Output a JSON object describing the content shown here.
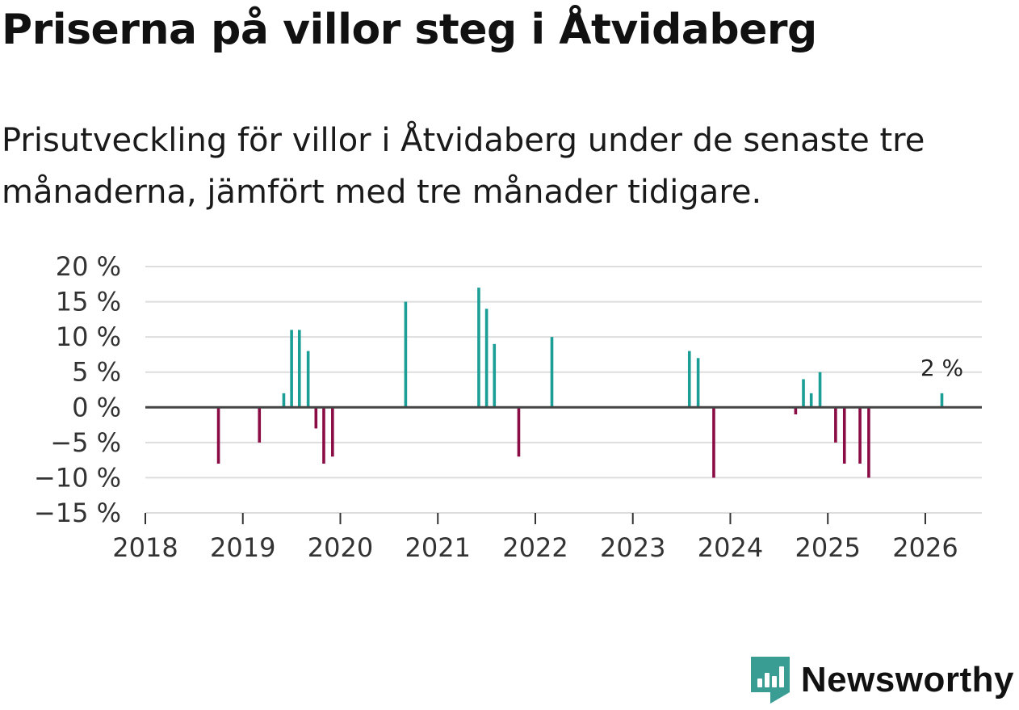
{
  "title": "Priserna på villor steg i Åtvidaberg",
  "subtitle": "Prisutveckling för villor i Åtvidaberg under de senaste tre månaderna, jämfört med tre månader tidigare.",
  "brand": {
    "name": "Newsworthy",
    "color": "#3a9d94"
  },
  "colors": {
    "positive": "#1a9e96",
    "negative": "#8b0c45",
    "grid": "#dddddd",
    "zero_line": "#444444"
  },
  "chart_data": {
    "type": "bar",
    "title": "Priserna på villor steg i Åtvidaberg",
    "xlabel": "",
    "ylabel": "",
    "x_ticks": [
      2018,
      2019,
      2020,
      2021,
      2022,
      2023,
      2024,
      2025,
      2026
    ],
    "x_tick_labels": [
      "2018",
      "2019",
      "2020",
      "2021",
      "2022",
      "2023",
      "2024",
      "2025",
      "2026"
    ],
    "y_ticks": [
      20,
      15,
      10,
      5,
      0,
      -5,
      -10,
      -15
    ],
    "y_tick_labels": [
      "20 %",
      "15 %",
      "10 %",
      "5 %",
      "0 %",
      "−5 %",
      "−10 %",
      "−15 %"
    ],
    "xlim": [
      2018.0,
      2026.58
    ],
    "ylim": [
      -15,
      20
    ],
    "grid": true,
    "series": [
      {
        "name": "Prisutveckling",
        "points": [
          {
            "x": 2018.75,
            "value": -8
          },
          {
            "x": 2019.17,
            "value": -5
          },
          {
            "x": 2019.42,
            "value": 2
          },
          {
            "x": 2019.5,
            "value": 11
          },
          {
            "x": 2019.58,
            "value": 11
          },
          {
            "x": 2019.67,
            "value": 8
          },
          {
            "x": 2019.75,
            "value": -3
          },
          {
            "x": 2019.83,
            "value": -8
          },
          {
            "x": 2019.92,
            "value": -7
          },
          {
            "x": 2020.67,
            "value": 15
          },
          {
            "x": 2021.42,
            "value": 17
          },
          {
            "x": 2021.5,
            "value": 14
          },
          {
            "x": 2021.58,
            "value": 9
          },
          {
            "x": 2021.83,
            "value": -7
          },
          {
            "x": 2022.17,
            "value": 10
          },
          {
            "x": 2023.58,
            "value": 8
          },
          {
            "x": 2023.67,
            "value": 7
          },
          {
            "x": 2023.83,
            "value": -10
          },
          {
            "x": 2024.67,
            "value": -1
          },
          {
            "x": 2024.75,
            "value": 4
          },
          {
            "x": 2024.83,
            "value": 2
          },
          {
            "x": 2024.92,
            "value": 5
          },
          {
            "x": 2025.08,
            "value": -5
          },
          {
            "x": 2025.17,
            "value": -8
          },
          {
            "x": 2025.33,
            "value": -8
          },
          {
            "x": 2025.42,
            "value": -10
          },
          {
            "x": 2026.17,
            "value": 2
          }
        ]
      }
    ],
    "annotations": [
      {
        "x": 2026.17,
        "value": 2,
        "text": "2 %"
      }
    ]
  }
}
